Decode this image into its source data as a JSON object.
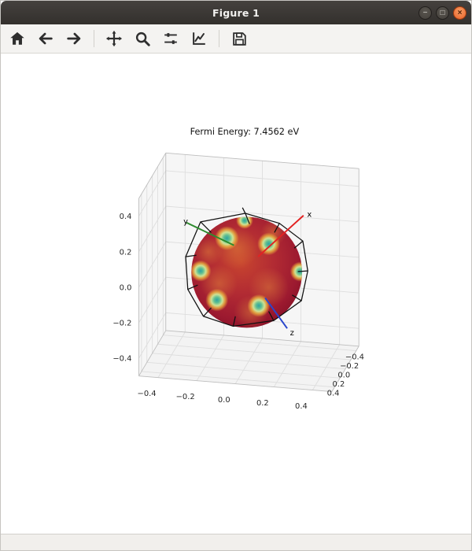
{
  "window": {
    "title": "Figure 1",
    "controls": [
      {
        "name": "minimize",
        "glyph": "−"
      },
      {
        "name": "maximize",
        "glyph": "□"
      },
      {
        "name": "close",
        "glyph": "×"
      }
    ]
  },
  "toolbar": {
    "buttons": [
      {
        "icon": "home"
      },
      {
        "icon": "back"
      },
      {
        "icon": "forward"
      },
      {
        "icon": "pan"
      },
      {
        "icon": "zoom"
      },
      {
        "icon": "subplots"
      },
      {
        "icon": "customize"
      },
      {
        "icon": "save"
      }
    ]
  },
  "plot": {
    "title": "Fermi Energy: 7.4562 eV",
    "axis_arrows": [
      {
        "label": "x",
        "color": "#e32222"
      },
      {
        "label": "y",
        "color": "#2e8b2e"
      },
      {
        "label": "z",
        "color": "#2946cc"
      }
    ]
  },
  "chart_data": {
    "type": "3d-surface",
    "title": "Fermi Energy: 7.4562 eV",
    "fermi_energy_eV": 7.4562,
    "xticks": [
      "−0.4",
      "−0.2",
      "0.0",
      "0.2",
      "0.4"
    ],
    "yticks": [
      "0.4",
      "0.2",
      "0.0",
      "−0.2",
      "−0.4"
    ],
    "zticks": [
      "0.4",
      "0.2",
      "0.0",
      "−0.2",
      "−0.4"
    ],
    "xlim": [
      -0.5,
      0.5
    ],
    "ylim": [
      -0.5,
      0.5
    ],
    "zlim": [
      -0.5,
      0.5
    ],
    "grid": true,
    "axes_labels_3d": [
      "x",
      "y",
      "z"
    ],
    "series": [
      {
        "name": "fermi-surface",
        "shape": "sphere",
        "style": "colormap: dark red body with teal/green neck spots at zone faces"
      },
      {
        "name": "brillouin-zone",
        "shape": "truncated-octahedron wireframe",
        "color": "#000000"
      }
    ]
  },
  "statusbar": {
    "text": ""
  }
}
